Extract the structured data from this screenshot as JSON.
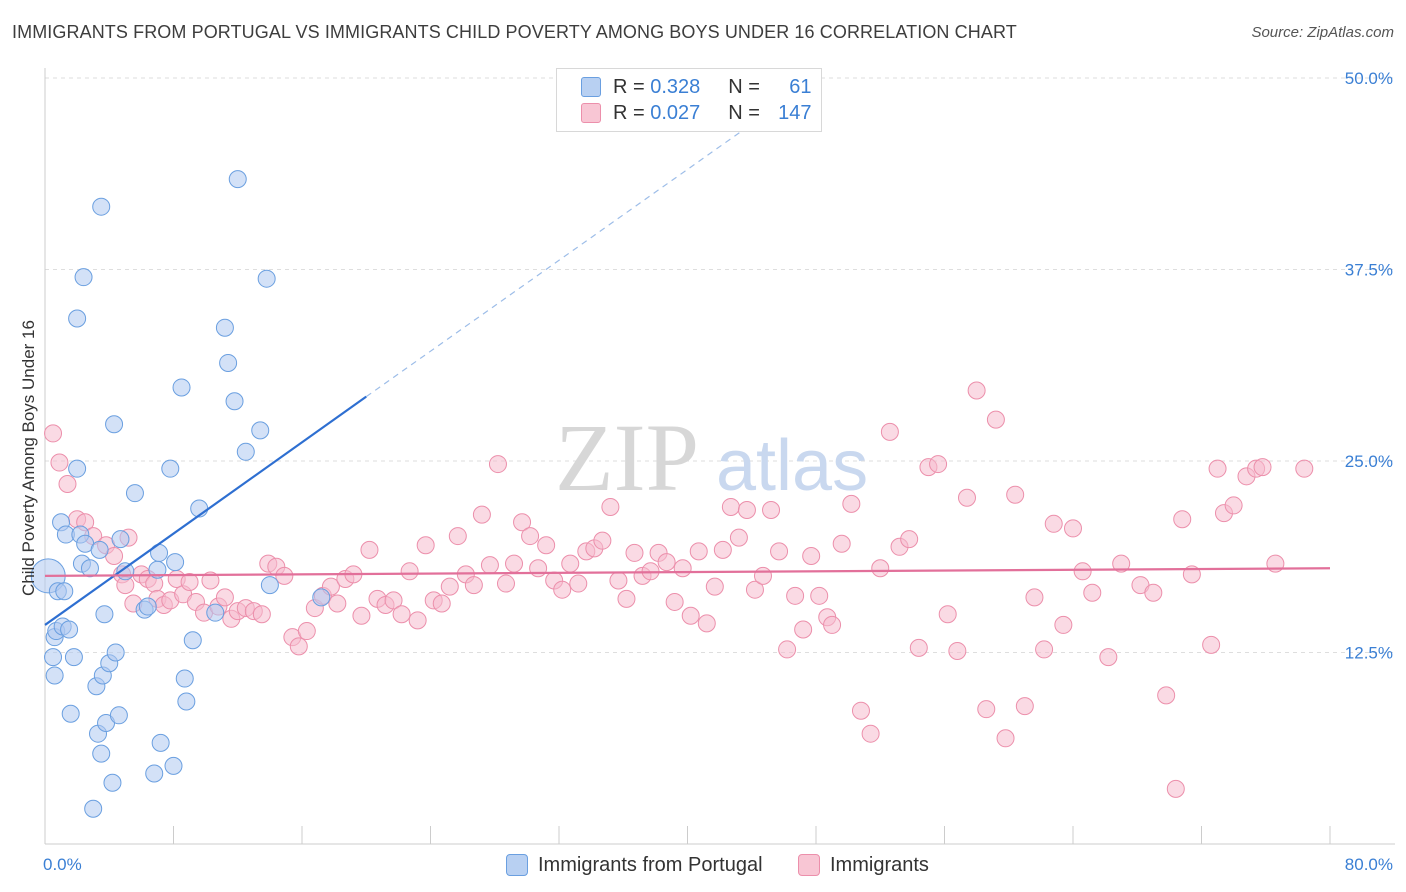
{
  "title": "IMMIGRANTS FROM PORTUGAL VS IMMIGRANTS CHILD POVERTY AMONG BOYS UNDER 16 CORRELATION CHART",
  "source": "Source: ZipAtlas.com",
  "watermark": {
    "zip": "ZIP",
    "atlas": "atlas"
  },
  "legend": {
    "rows": [
      {
        "r_label": "R =",
        "r_value": "0.328",
        "n_label": "N =",
        "n_value": "61"
      },
      {
        "r_label": "R =",
        "r_value": "0.027",
        "n_label": "N =",
        "n_value": "147"
      }
    ]
  },
  "chart_data": {
    "type": "scatter",
    "title": "IMMIGRANTS FROM PORTUGAL VS IMMIGRANTS CHILD POVERTY AMONG BOYS UNDER 16 CORRELATION CHART",
    "xlabel": "",
    "ylabel": "Child Poverty Among Boys Under 16",
    "xlim": [
      0,
      80
    ],
    "ylim": [
      0,
      50
    ],
    "x_tick_labels": [
      "0.0%",
      "80.0%"
    ],
    "y_ticks": [
      12.5,
      25.0,
      37.5,
      50.0
    ],
    "y_tick_labels": [
      "12.5%",
      "25.0%",
      "37.5%",
      "50.0%"
    ],
    "grid": true,
    "legend_position": "top-center",
    "colors": {
      "blue_fill": "#aec9f0",
      "blue_stroke": "#6a9fe0",
      "blue_line": "#2e6fd1",
      "pink_fill": "#f6bccd",
      "pink_stroke": "#ec8fab",
      "pink_line": "#e2709a",
      "tick_label": "#3a7fd4"
    },
    "series": [
      {
        "name": "Immigrants from Portugal",
        "color": "#aec9f0",
        "trend": {
          "x": [
            0,
            20
          ],
          "y": [
            14.3,
            29.2
          ],
          "dashed_to": [
            44,
            47.0
          ]
        },
        "points": [
          [
            0.2,
            17.5
          ],
          [
            0.5,
            12.2
          ],
          [
            0.6,
            11.0
          ],
          [
            0.6,
            13.5
          ],
          [
            0.7,
            13.9
          ],
          [
            0.8,
            16.5
          ],
          [
            1.0,
            21.0
          ],
          [
            1.1,
            14.2
          ],
          [
            1.2,
            16.5
          ],
          [
            1.3,
            20.2
          ],
          [
            1.5,
            14.0
          ],
          [
            1.6,
            8.5
          ],
          [
            1.8,
            12.2
          ],
          [
            2.0,
            24.5
          ],
          [
            2.2,
            20.2
          ],
          [
            2.3,
            18.3
          ],
          [
            2.4,
            37.0
          ],
          [
            2.5,
            19.6
          ],
          [
            2.8,
            18.0
          ],
          [
            3.0,
            2.3
          ],
          [
            3.2,
            10.3
          ],
          [
            3.3,
            7.2
          ],
          [
            3.4,
            19.2
          ],
          [
            3.5,
            5.9
          ],
          [
            3.5,
            41.6
          ],
          [
            3.6,
            11.0
          ],
          [
            3.7,
            15.0
          ],
          [
            3.8,
            7.9
          ],
          [
            4.0,
            11.8
          ],
          [
            4.2,
            4.0
          ],
          [
            4.3,
            27.4
          ],
          [
            4.4,
            12.5
          ],
          [
            4.6,
            8.4
          ],
          [
            4.7,
            19.9
          ],
          [
            2.0,
            34.3
          ],
          [
            5.0,
            17.8
          ],
          [
            5.6,
            22.9
          ],
          [
            6.2,
            15.3
          ],
          [
            6.4,
            15.5
          ],
          [
            6.8,
            4.6
          ],
          [
            7.0,
            17.9
          ],
          [
            7.1,
            19.0
          ],
          [
            7.2,
            6.6
          ],
          [
            7.8,
            24.5
          ],
          [
            8.0,
            5.1
          ],
          [
            8.1,
            18.4
          ],
          [
            8.5,
            29.8
          ],
          [
            8.7,
            10.8
          ],
          [
            8.8,
            9.3
          ],
          [
            9.2,
            13.3
          ],
          [
            9.6,
            21.9
          ],
          [
            10.6,
            15.1
          ],
          [
            11.2,
            33.7
          ],
          [
            11.4,
            31.4
          ],
          [
            11.8,
            28.9
          ],
          [
            12.0,
            43.4
          ],
          [
            12.5,
            25.6
          ],
          [
            13.4,
            27.0
          ],
          [
            13.8,
            36.9
          ],
          [
            17.2,
            16.1
          ],
          [
            14.0,
            16.9
          ]
        ]
      },
      {
        "name": "Immigrants",
        "color": "#f6bccd",
        "trend": {
          "x": [
            0,
            80
          ],
          "y": [
            17.5,
            18.0
          ]
        },
        "points": [
          [
            0.5,
            26.8
          ],
          [
            0.9,
            24.9
          ],
          [
            1.4,
            23.5
          ],
          [
            2.0,
            21.2
          ],
          [
            2.5,
            21.0
          ],
          [
            3.0,
            20.1
          ],
          [
            3.8,
            19.5
          ],
          [
            4.3,
            18.8
          ],
          [
            4.8,
            17.6
          ],
          [
            5.0,
            16.9
          ],
          [
            5.2,
            20.0
          ],
          [
            5.5,
            15.7
          ],
          [
            6.0,
            17.6
          ],
          [
            6.4,
            17.3
          ],
          [
            6.8,
            17.0
          ],
          [
            7.0,
            16.0
          ],
          [
            7.4,
            15.6
          ],
          [
            7.8,
            15.9
          ],
          [
            8.2,
            17.3
          ],
          [
            8.6,
            16.3
          ],
          [
            9.0,
            17.1
          ],
          [
            9.4,
            15.8
          ],
          [
            9.9,
            15.1
          ],
          [
            10.3,
            17.2
          ],
          [
            10.8,
            15.5
          ],
          [
            11.2,
            16.1
          ],
          [
            11.6,
            14.7
          ],
          [
            12.0,
            15.2
          ],
          [
            12.5,
            15.4
          ],
          [
            13.0,
            15.2
          ],
          [
            13.5,
            15.0
          ],
          [
            13.9,
            18.3
          ],
          [
            14.4,
            18.1
          ],
          [
            14.9,
            17.5
          ],
          [
            15.4,
            13.5
          ],
          [
            15.8,
            12.9
          ],
          [
            16.3,
            13.9
          ],
          [
            16.8,
            15.4
          ],
          [
            17.3,
            16.2
          ],
          [
            17.8,
            16.8
          ],
          [
            18.2,
            15.7
          ],
          [
            18.7,
            17.3
          ],
          [
            19.2,
            17.6
          ],
          [
            19.7,
            14.9
          ],
          [
            20.2,
            19.2
          ],
          [
            20.7,
            16.0
          ],
          [
            21.2,
            15.6
          ],
          [
            21.7,
            15.9
          ],
          [
            22.2,
            15.0
          ],
          [
            22.7,
            17.8
          ],
          [
            23.2,
            14.6
          ],
          [
            23.7,
            19.5
          ],
          [
            24.2,
            15.9
          ],
          [
            24.7,
            15.7
          ],
          [
            25.2,
            16.8
          ],
          [
            25.7,
            20.1
          ],
          [
            26.2,
            17.6
          ],
          [
            26.7,
            16.9
          ],
          [
            27.2,
            21.5
          ],
          [
            27.7,
            18.2
          ],
          [
            28.2,
            24.8
          ],
          [
            28.7,
            17.0
          ],
          [
            29.2,
            18.3
          ],
          [
            29.7,
            21.0
          ],
          [
            30.2,
            20.1
          ],
          [
            30.7,
            18.0
          ],
          [
            31.2,
            19.5
          ],
          [
            31.7,
            17.2
          ],
          [
            32.2,
            16.6
          ],
          [
            32.7,
            18.3
          ],
          [
            33.2,
            17.0
          ],
          [
            33.7,
            19.1
          ],
          [
            34.2,
            19.3
          ],
          [
            34.7,
            19.8
          ],
          [
            35.2,
            22.0
          ],
          [
            35.7,
            17.2
          ],
          [
            36.2,
            16.0
          ],
          [
            36.7,
            19.0
          ],
          [
            37.2,
            17.5
          ],
          [
            37.7,
            17.8
          ],
          [
            38.2,
            19.0
          ],
          [
            38.7,
            18.4
          ],
          [
            39.2,
            15.8
          ],
          [
            39.7,
            18.0
          ],
          [
            40.2,
            14.9
          ],
          [
            40.7,
            19.1
          ],
          [
            41.2,
            14.4
          ],
          [
            41.7,
            16.8
          ],
          [
            42.2,
            19.2
          ],
          [
            42.7,
            22.0
          ],
          [
            43.2,
            20.0
          ],
          [
            43.7,
            21.8
          ],
          [
            44.2,
            16.6
          ],
          [
            44.7,
            17.5
          ],
          [
            45.2,
            21.8
          ],
          [
            45.7,
            19.1
          ],
          [
            46.2,
            12.7
          ],
          [
            46.7,
            16.2
          ],
          [
            47.2,
            14.0
          ],
          [
            47.7,
            18.8
          ],
          [
            48.2,
            16.2
          ],
          [
            48.7,
            14.8
          ],
          [
            49.0,
            14.3
          ],
          [
            49.6,
            19.6
          ],
          [
            50.2,
            22.2
          ],
          [
            50.8,
            8.7
          ],
          [
            51.4,
            7.2
          ],
          [
            52.0,
            18.0
          ],
          [
            52.6,
            26.9
          ],
          [
            53.2,
            19.4
          ],
          [
            53.8,
            19.9
          ],
          [
            54.4,
            12.8
          ],
          [
            55.0,
            24.6
          ],
          [
            55.6,
            24.8
          ],
          [
            56.2,
            15.0
          ],
          [
            56.8,
            12.6
          ],
          [
            57.4,
            22.6
          ],
          [
            58.0,
            29.6
          ],
          [
            58.6,
            8.8
          ],
          [
            59.2,
            27.7
          ],
          [
            59.8,
            6.9
          ],
          [
            60.4,
            22.8
          ],
          [
            61.0,
            9.0
          ],
          [
            61.6,
            16.1
          ],
          [
            62.2,
            12.7
          ],
          [
            62.8,
            20.9
          ],
          [
            63.4,
            14.3
          ],
          [
            64.0,
            20.6
          ],
          [
            64.6,
            17.8
          ],
          [
            65.2,
            16.4
          ],
          [
            66.2,
            12.2
          ],
          [
            67.0,
            18.3
          ],
          [
            68.2,
            16.9
          ],
          [
            69.0,
            16.4
          ],
          [
            69.8,
            9.7
          ],
          [
            70.4,
            3.6
          ],
          [
            70.8,
            21.2
          ],
          [
            71.4,
            17.6
          ],
          [
            72.6,
            13.0
          ],
          [
            73.4,
            21.6
          ],
          [
            74.0,
            22.1
          ],
          [
            74.8,
            24.0
          ],
          [
            75.4,
            24.5
          ],
          [
            75.8,
            24.6
          ],
          [
            76.6,
            18.3
          ],
          [
            78.4,
            24.5
          ],
          [
            73.0,
            24.5
          ]
        ]
      }
    ]
  },
  "bottom_legend": {
    "items": [
      {
        "label": "Immigrants from Portugal"
      },
      {
        "label": "Immigrants"
      }
    ]
  }
}
